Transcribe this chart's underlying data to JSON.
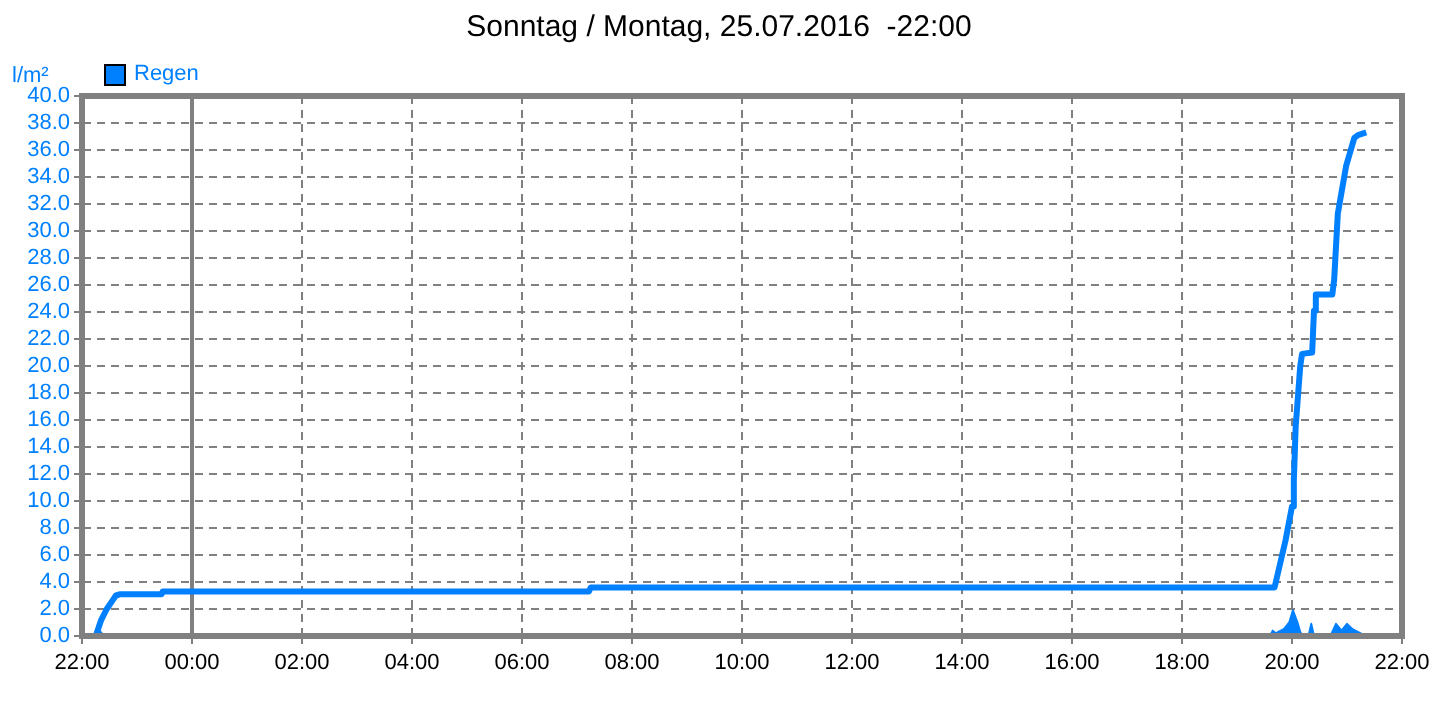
{
  "chart_data": {
    "type": "line",
    "title": "Sonntag / Montag, 25.07.2016  -22:00",
    "ylabel": "l/m²",
    "xlim": [
      "2016-07-24T22:00",
      "2016-07-25T22:00"
    ],
    "xticks": [
      {
        "value": "2016-07-24T22:00",
        "label": "22:00"
      },
      {
        "value": "2016-07-25T00:00",
        "label": "00:00"
      },
      {
        "value": "2016-07-25T02:00",
        "label": "02:00"
      },
      {
        "value": "2016-07-25T04:00",
        "label": "04:00"
      },
      {
        "value": "2016-07-25T06:00",
        "label": "06:00"
      },
      {
        "value": "2016-07-25T08:00",
        "label": "08:00"
      },
      {
        "value": "2016-07-25T10:00",
        "label": "10:00"
      },
      {
        "value": "2016-07-25T12:00",
        "label": "12:00"
      },
      {
        "value": "2016-07-25T14:00",
        "label": "14:00"
      },
      {
        "value": "2016-07-25T16:00",
        "label": "16:00"
      },
      {
        "value": "2016-07-25T18:00",
        "label": "18:00"
      },
      {
        "value": "2016-07-25T20:00",
        "label": "20:00"
      },
      {
        "value": "2016-07-25T22:00",
        "label": "22:00"
      }
    ],
    "ylim": [
      0,
      40
    ],
    "yticks": [
      {
        "value": 0,
        "label": "0.0"
      },
      {
        "value": 2,
        "label": "2.0"
      },
      {
        "value": 4,
        "label": "4.0"
      },
      {
        "value": 6,
        "label": "6.0"
      },
      {
        "value": 8,
        "label": "8.0"
      },
      {
        "value": 10,
        "label": "10.0"
      },
      {
        "value": 12,
        "label": "12.0"
      },
      {
        "value": 14,
        "label": "14.0"
      },
      {
        "value": 16,
        "label": "16.0"
      },
      {
        "value": 18,
        "label": "18.0"
      },
      {
        "value": 20,
        "label": "20.0"
      },
      {
        "value": 22,
        "label": "22.0"
      },
      {
        "value": 24,
        "label": "24.0"
      },
      {
        "value": 26,
        "label": "26.0"
      },
      {
        "value": 28,
        "label": "28.0"
      },
      {
        "value": 30,
        "label": "30.0"
      },
      {
        "value": 32,
        "label": "32.0"
      },
      {
        "value": 34,
        "label": "34.0"
      },
      {
        "value": 36,
        "label": "36.0"
      },
      {
        "value": 38,
        "label": "38.0"
      },
      {
        "value": 40,
        "label": "40.0"
      }
    ],
    "grid": true,
    "legend": "top left",
    "marker": "none",
    "ref_lines": [
      {
        "axis": "x",
        "value": "2016-07-25T00:00",
        "color": "#808080"
      }
    ],
    "series": [
      {
        "name": "Regen",
        "type": "line",
        "color": "#0080ff",
        "x": [
          "2016-07-24T22:00",
          "2016-07-24T22:15",
          "2016-07-24T22:21",
          "2016-07-24T22:27",
          "2016-07-24T22:33",
          "2016-07-24T22:37",
          "2016-07-24T22:42",
          "2016-07-24T23:27",
          "2016-07-24T23:28",
          "2016-07-25T07:13",
          "2016-07-25T07:15",
          "2016-07-25T19:41",
          "2016-07-25T19:53",
          "2016-07-25T20:00",
          "2016-07-25T20:02",
          "2016-07-25T20:04",
          "2016-07-25T20:09",
          "2016-07-25T20:11",
          "2016-07-25T20:22",
          "2016-07-25T20:24",
          "2016-07-25T20:26",
          "2016-07-25T20:44",
          "2016-07-25T20:46",
          "2016-07-25T20:50",
          "2016-07-25T20:59",
          "2016-07-25T21:08",
          "2016-07-25T21:12",
          "2016-07-25T21:21"
        ],
        "values": [
          0,
          0,
          1.2,
          2.0,
          2.6,
          3.0,
          3.1,
          3.1,
          3.3,
          3.3,
          3.6,
          3.6,
          7.1,
          9.6,
          11.5,
          15.5,
          20.0,
          20.9,
          21.0,
          24.1,
          25.3,
          25.3,
          26.4,
          31.3,
          34.8,
          36.9,
          37.1,
          37.3
        ]
      },
      {
        "type": "area",
        "color": "#0080ff",
        "x": [
          "2016-07-24T22:00",
          "2016-07-24T22:15",
          "2016-07-24T22:19",
          "2016-07-24T22:24",
          "2016-07-24T22:30",
          "2016-07-25T19:36",
          "2016-07-25T19:39",
          "2016-07-25T19:42",
          "2016-07-25T19:45",
          "2016-07-25T19:51",
          "2016-07-25T19:57",
          "2016-07-25T20:01",
          "2016-07-25T20:06",
          "2016-07-25T20:09",
          "2016-07-25T20:12",
          "2016-07-25T20:18",
          "2016-07-25T20:21",
          "2016-07-25T20:24",
          "2016-07-25T20:42",
          "2016-07-25T20:48",
          "2016-07-25T20:54",
          "2016-07-25T21:00",
          "2016-07-25T21:06",
          "2016-07-25T21:15",
          "2016-07-25T21:21"
        ],
        "values": [
          0,
          0,
          0.4,
          0,
          0,
          0,
          0.4,
          0.2,
          0.3,
          0.5,
          1.0,
          1.9,
          1.0,
          0.3,
          0,
          0,
          0.9,
          0,
          0,
          0.9,
          0.4,
          0.9,
          0.5,
          0.2,
          0
        ]
      }
    ]
  }
}
